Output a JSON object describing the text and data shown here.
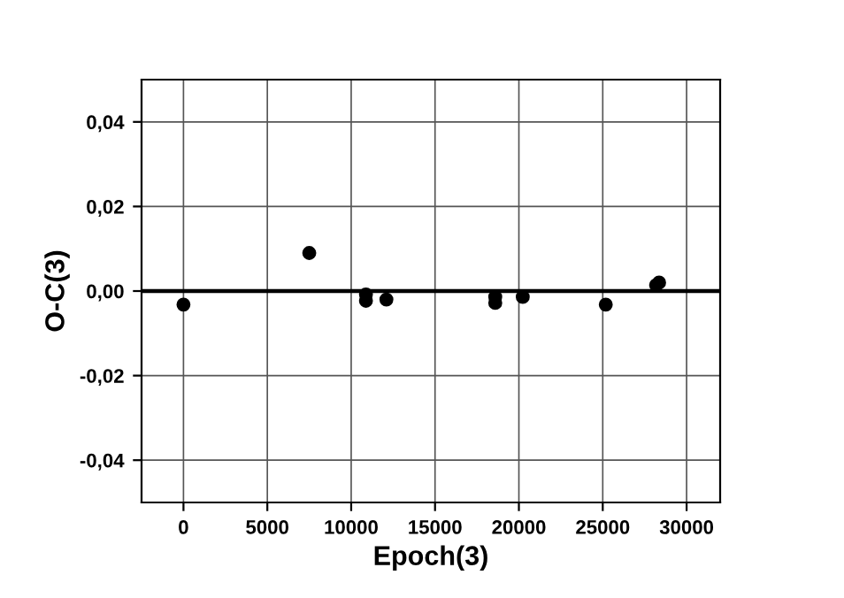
{
  "chart_data": {
    "type": "scatter",
    "xlabel": "Epoch(3)",
    "ylabel": "O-C(3)",
    "x": [
      0,
      7500,
      10880,
      10880,
      12100,
      18590,
      18590,
      20230,
      25180,
      28180,
      28360
    ],
    "series": [
      {
        "color": "#000000",
        "values": [
          -0.0032,
          0.009,
          -0.0008,
          -0.0023,
          -0.002,
          -0.0014,
          -0.0028,
          -0.0014,
          -0.0032,
          0.0014,
          0.002
        ]
      }
    ],
    "xlim": [
      -2500,
      32000
    ],
    "ylim": [
      -0.05,
      0.05
    ],
    "xticks": [
      0,
      5000,
      10000,
      15000,
      20000,
      25000,
      30000
    ],
    "yticks": [
      {
        "value": -0.04,
        "label": "-0,04"
      },
      {
        "value": -0.02,
        "label": "-0,02"
      },
      {
        "value": 0,
        "label": "0,00"
      },
      {
        "value": 0.02,
        "label": "0,02"
      },
      {
        "value": 0.04,
        "label": "0,04"
      }
    ],
    "ref_lines": [
      {
        "axis": "y",
        "value": 0,
        "color": "#000000"
      }
    ],
    "grid": true,
    "marker": "circle",
    "legend": false
  }
}
